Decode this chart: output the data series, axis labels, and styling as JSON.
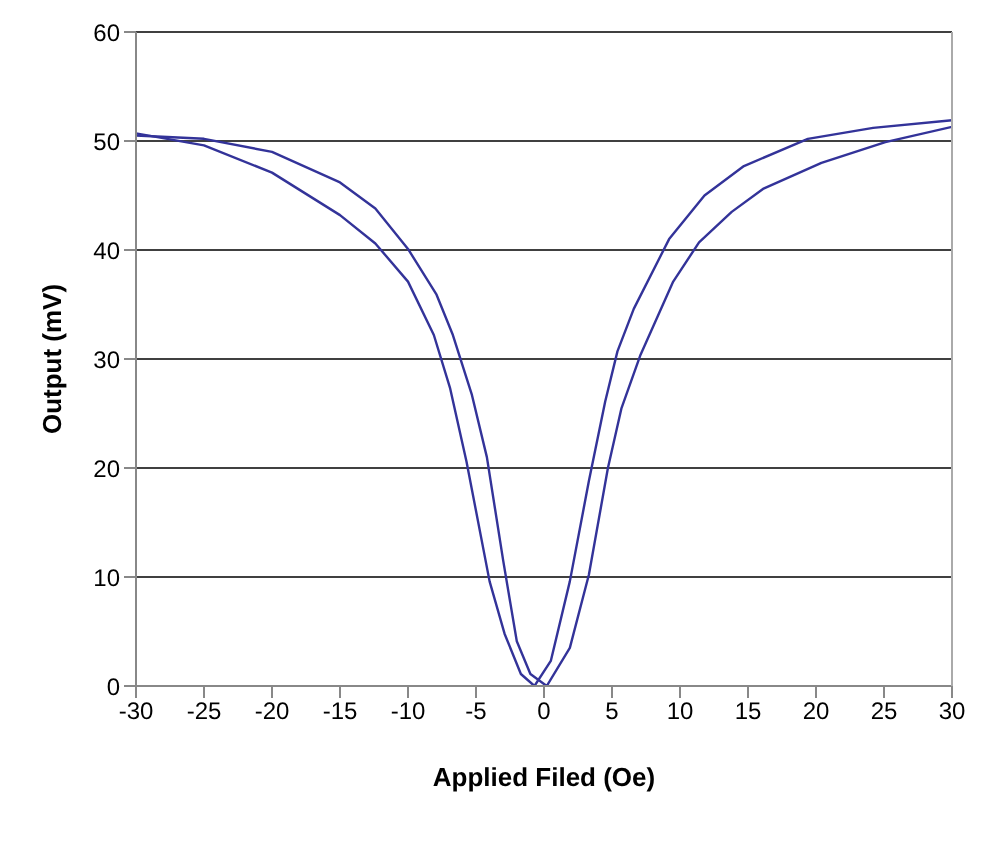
{
  "chart_data": {
    "type": "line",
    "xlabel": "Applied Filed (Oe)",
    "ylabel": "Output (mV)",
    "xlim": [
      -30,
      30
    ],
    "xticks": [
      -30,
      -25,
      -20,
      -15,
      -10,
      -5,
      0,
      5,
      10,
      15,
      20,
      25,
      30
    ],
    "ylim": [
      0,
      60
    ],
    "yticks": [
      0,
      10,
      20,
      30,
      40,
      50,
      60
    ],
    "grid": "y",
    "legend": false,
    "marker": "none",
    "line_style": "solid",
    "series": [
      {
        "color": "#333399",
        "x": [
          -30,
          -25,
          -20,
          -15,
          -12.4,
          -10,
          -8.1,
          -6.9,
          -5.7,
          -4,
          -2.9,
          -1.7,
          -0.7,
          0.5,
          1.9,
          3.3,
          4.5,
          5.4,
          6.6,
          9.2,
          11.8,
          14.7,
          19.4,
          24.2,
          30
        ],
        "values": [
          50.7,
          49.6,
          47.1,
          43.2,
          40.6,
          37.1,
          32.2,
          27.3,
          20.6,
          9.6,
          4.8,
          1.1,
          0,
          2.3,
          9.6,
          18.8,
          26.1,
          30.7,
          34.6,
          41,
          45,
          47.7,
          50.2,
          51.2,
          51.9
        ]
      },
      {
        "color": "#333399",
        "x": [
          -30,
          -25,
          -20,
          -15,
          -12.4,
          -10,
          -7.9,
          -6.7,
          -5.3,
          -4.2,
          -3,
          -2,
          -1,
          0.2,
          1.9,
          3.3,
          4.7,
          5.7,
          7.1,
          9.5,
          11.4,
          13.8,
          16.1,
          20.4,
          25.1,
          30
        ],
        "values": [
          50.5,
          50.2,
          49,
          46.2,
          43.8,
          40.1,
          35.9,
          32.2,
          26.7,
          21,
          11.5,
          4.1,
          1.1,
          0,
          3.5,
          10.2,
          20,
          25.5,
          30.4,
          37.1,
          40.7,
          43.5,
          45.6,
          48,
          49.9,
          51.3
        ]
      }
    ]
  }
}
